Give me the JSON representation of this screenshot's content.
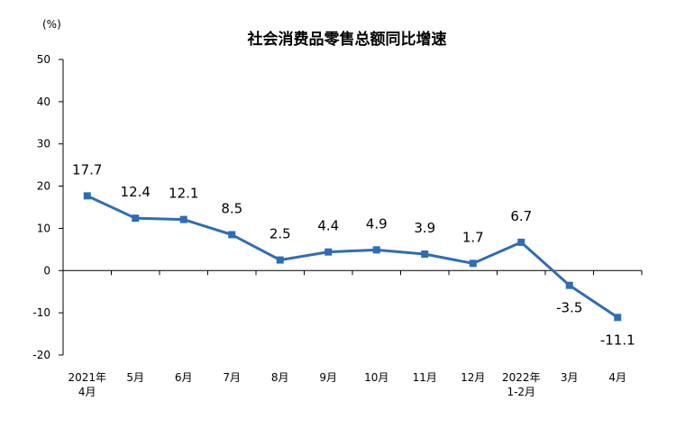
{
  "chart_data": {
    "type": "line",
    "title": "社会消费品零售总额同比增速",
    "unit": "(%)",
    "categories": [
      [
        "2021年",
        "4月"
      ],
      [
        "5月"
      ],
      [
        "6月"
      ],
      [
        "7月"
      ],
      [
        "8月"
      ],
      [
        "9月"
      ],
      [
        "10月"
      ],
      [
        "11月"
      ],
      [
        "12月"
      ],
      [
        "2022年",
        "1-2月"
      ],
      [
        "3月"
      ],
      [
        "4月"
      ]
    ],
    "values": [
      17.7,
      12.4,
      12.1,
      8.5,
      2.5,
      4.4,
      4.9,
      3.9,
      1.7,
      6.7,
      -3.5,
      -11.1
    ],
    "data_labels": [
      "17.7",
      "12.4",
      "12.1",
      "8.5",
      "2.5",
      "4.4",
      "4.9",
      "3.9",
      "1.7",
      "6.7",
      "-3.5",
      "-11.1"
    ],
    "yticks": [
      50,
      40,
      30,
      20,
      10,
      0,
      -10,
      -20
    ],
    "ylim": [
      -20,
      50
    ],
    "grid": false,
    "legend": "none",
    "colors": {
      "line": "#2e6db4",
      "marker": "#2e6db4",
      "axis": "#000000"
    }
  }
}
